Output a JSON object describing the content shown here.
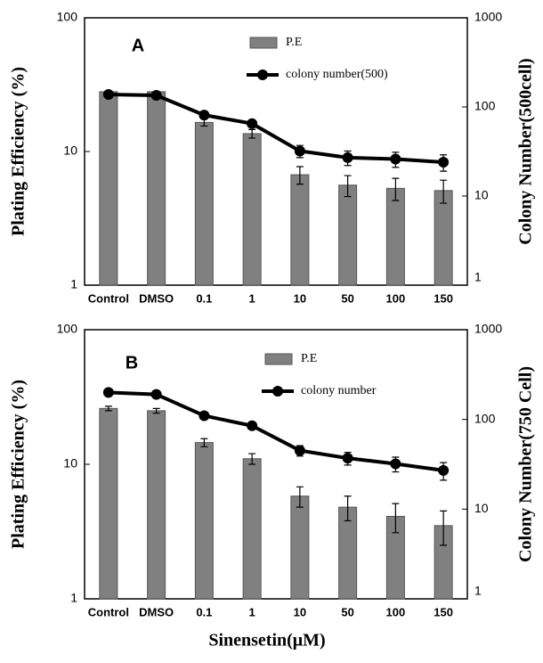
{
  "chart_data": [
    {
      "type": "bar",
      "annotation": "A",
      "log_scale": true,
      "grid": false,
      "legend": "upper right",
      "y_label": "Plating Efficiency (%)",
      "y2_label": "Colony Number(500cell)",
      "categories": [
        "Control",
        "DMSO",
        "0.1",
        "1",
        "10",
        "50",
        "100",
        "150"
      ],
      "ylim": [
        1,
        100
      ],
      "yticks": [
        1,
        10,
        100
      ],
      "y2lim": [
        1,
        1000
      ],
      "y2ticks": [
        1,
        10,
        100,
        1000
      ],
      "series": [
        {
          "name": "P.E",
          "type": "bar",
          "color": "#808080",
          "values": [
            28,
            28,
            16.5,
            13.6,
            6.7,
            5.6,
            5.3,
            5.1
          ],
          "errors": [
            0,
            0,
            1,
            1,
            1,
            1,
            1,
            1
          ]
        },
        {
          "name": "colony number(500)",
          "type": "line",
          "axis": "y2",
          "color": "#000000",
          "values": [
            138,
            135,
            81,
            65,
            32,
            27,
            26,
            24
          ],
          "errors": [
            0,
            0,
            5,
            4,
            5,
            5,
            5,
            5
          ]
        }
      ]
    },
    {
      "type": "bar",
      "annotation": "B",
      "log_scale": true,
      "grid": false,
      "legend": "upper right",
      "y_label": "Plating  Efficiency (%)",
      "y2_label": "Colony Number(750 Cell)",
      "x_label": "Sinensetin(μM)",
      "categories": [
        "Control",
        "DMSO",
        "0.1",
        "1",
        "10",
        "50",
        "100",
        "150"
      ],
      "ylim": [
        1,
        100
      ],
      "yticks": [
        1,
        10,
        100
      ],
      "y2lim": [
        1,
        1000
      ],
      "y2ticks": [
        1,
        10,
        100,
        1000
      ],
      "series": [
        {
          "name": "P.E",
          "type": "bar",
          "color": "#808080",
          "values": [
            26,
            25,
            14.5,
            11,
            5.8,
            4.8,
            4.1,
            3.5
          ],
          "errors": [
            1,
            1,
            1,
            1,
            1,
            1,
            1,
            1
          ]
        },
        {
          "name": "colony number",
          "type": "line",
          "axis": "y2",
          "color": "#000000",
          "values": [
            200,
            190,
            110,
            85,
            45,
            37,
            32,
            27
          ],
          "errors": [
            0,
            0,
            6,
            5,
            6,
            6,
            6,
            6
          ]
        }
      ]
    }
  ]
}
